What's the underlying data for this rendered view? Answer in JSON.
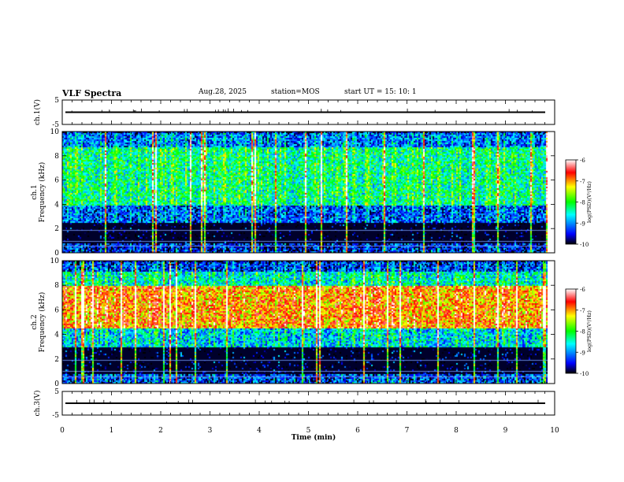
{
  "header": {
    "title": "VLF Spectra",
    "date": "Aug.28, 2025",
    "station": "station=MOS",
    "start": "start  UT  =   15: 10: 1"
  },
  "chart_data": [
    {
      "type": "line",
      "name": "ch1-waveform",
      "ylabel": "ch.1(V)",
      "ylim": [
        -5,
        5
      ],
      "yticks": [
        "5",
        "-5"
      ],
      "xlim": [
        0,
        10
      ],
      "level": 0
    },
    {
      "type": "heatmap",
      "name": "ch1-spectrogram",
      "ylabel": "ch.1\nFrequency (kHz)",
      "ylim": [
        0,
        10
      ],
      "yticks": [
        "0",
        "2",
        "4",
        "6",
        "8",
        "10"
      ],
      "xlim": [
        0,
        9.85
      ],
      "bands": [
        {
          "from": 0,
          "to": 0.8,
          "level": 0.15
        },
        {
          "from": 0.8,
          "to": 2.5,
          "level": 0.05
        },
        {
          "from": 2.5,
          "to": 4.0,
          "level": 0.22
        },
        {
          "from": 4.0,
          "to": 8.8,
          "level": 0.45
        },
        {
          "from": 8.8,
          "to": 10,
          "level": 0.25
        }
      ],
      "colorbar": {
        "label": "log(PSD)(V²/Hz)",
        "ticks": [
          "-6",
          "-7",
          "-8",
          "-9",
          "-10"
        ],
        "range": [
          -10,
          -6
        ]
      }
    },
    {
      "type": "heatmap",
      "name": "ch2-spectrogram",
      "ylabel": "ch.2\nFrequency (kHz)",
      "ylim": [
        0,
        10
      ],
      "yticks": [
        "0",
        "2",
        "4",
        "6",
        "8",
        "10"
      ],
      "xlim": [
        0,
        9.85
      ],
      "bands": [
        {
          "from": 0,
          "to": 0.8,
          "level": 0.2
        },
        {
          "from": 0.8,
          "to": 3.0,
          "level": 0.08
        },
        {
          "from": 3.0,
          "to": 4.5,
          "level": 0.35
        },
        {
          "from": 4.5,
          "to": 8.0,
          "level": 0.78
        },
        {
          "from": 8.0,
          "to": 9.2,
          "level": 0.4
        },
        {
          "from": 9.2,
          "to": 10,
          "level": 0.2
        }
      ],
      "colorbar": {
        "label": "log(PSD)(V²/Hz)",
        "ticks": [
          "-6",
          "-7",
          "-8",
          "-9",
          "-10"
        ],
        "range": [
          -10,
          -6
        ]
      }
    },
    {
      "type": "line",
      "name": "ch3-waveform",
      "ylabel": "ch.3(V)",
      "ylim": [
        -5,
        5
      ],
      "yticks": [
        "5",
        "-5"
      ],
      "xlim": [
        0,
        10
      ],
      "level": 0
    }
  ],
  "xaxis": {
    "label": "Time  (min)",
    "ticks": [
      "0",
      "1",
      "2",
      "3",
      "4",
      "5",
      "6",
      "7",
      "8",
      "9",
      "10"
    ],
    "range": [
      0,
      10
    ]
  }
}
